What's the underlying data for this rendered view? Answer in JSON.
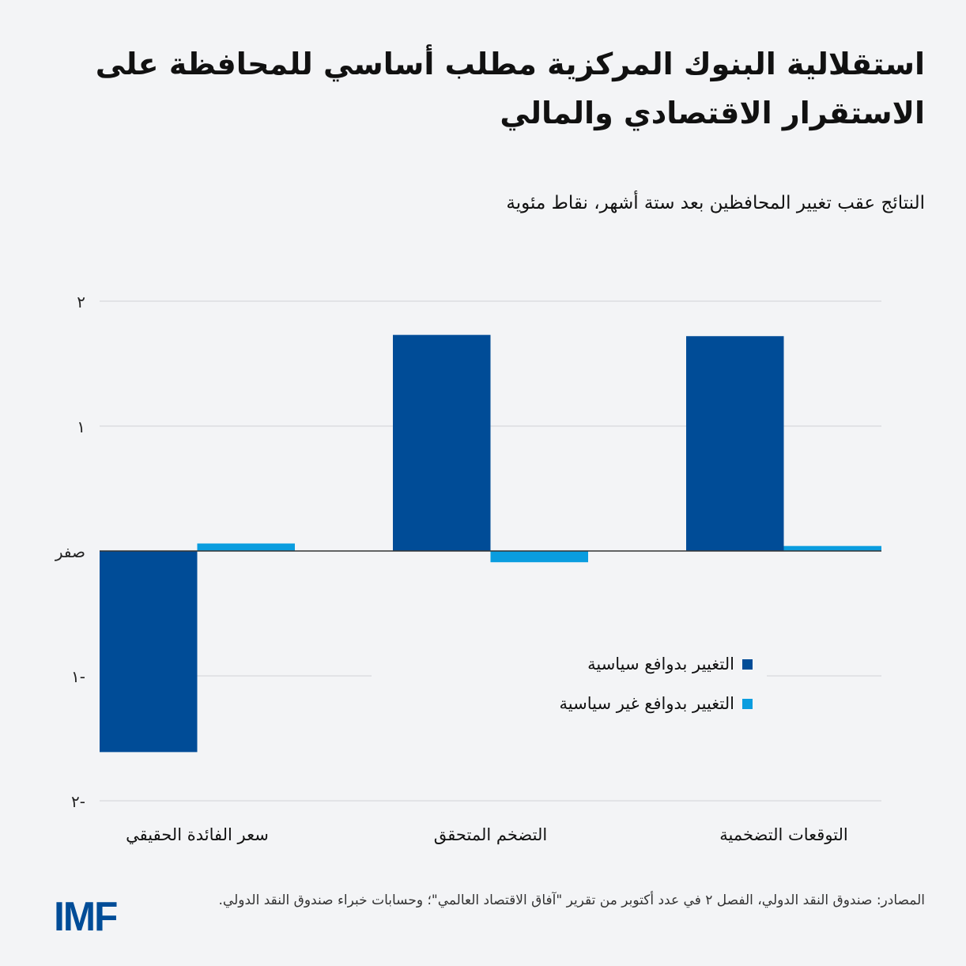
{
  "title": "استقلالية البنوك المركزية مطلب أساسي للمحافظة على الاستقرار الاقتصادي والمالي",
  "subtitle": "النتائج عقب تغيير المحافظين بعد ستة أشهر، نقاط مئوية",
  "source": "المصادر: صندوق النقد الدولي، الفصل ٢ في عدد أكتوبر من تقرير \"آفاق الاقتصاد العالمي\"؛ وحسابات خبراء صندوق النقد الدولي.",
  "logo": "IMF",
  "chart_data": {
    "type": "bar",
    "categories": [
      "سعر الفائدة الحقيقي",
      "التضخم المتحقق",
      "التوقعات التضخمية"
    ],
    "series": [
      {
        "name": "التغيير بدوافع سياسية",
        "color": "#004c97",
        "values": [
          -1.61,
          1.73,
          1.72
        ]
      },
      {
        "name": "التغيير بدوافع غير سياسية",
        "color": "#0a9ddf",
        "values": [
          0.06,
          -0.09,
          0.04
        ]
      }
    ],
    "ylim": [
      -2,
      2
    ],
    "yticks": [
      2,
      1,
      0,
      -1,
      -2
    ],
    "ytick_labels": [
      "٢",
      "١",
      "صفر",
      "١-",
      "٢-"
    ],
    "grid": true,
    "legend_position": "center-right"
  }
}
